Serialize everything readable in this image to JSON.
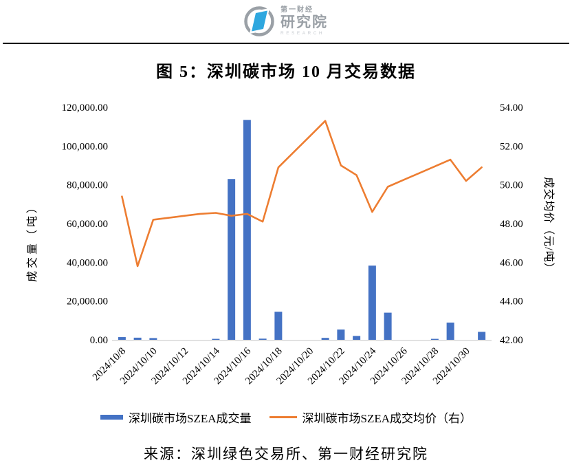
{
  "header": {
    "logo": {
      "brand_top": "第一财经",
      "brand_main": "研究院",
      "brand_sub": "RESEARCH",
      "colors": {
        "blue": "#2EA7DF",
        "gray": "#9AA0A6",
        "light_gray": "#C7CBD0"
      }
    }
  },
  "title": "图 5：深圳碳市场 10 月交易数据",
  "chart_data": {
    "type": "combo-bar-line",
    "title": "图 5：深圳碳市场 10 月交易数据",
    "grid": false,
    "legend_position": "bottom",
    "categories": [
      "2024/10/8",
      "2024/10/9",
      "2024/10/10",
      "2024/10/11",
      "2024/10/12",
      "2024/10/13",
      "2024/10/14",
      "2024/10/15",
      "2024/10/16",
      "2024/10/17",
      "2024/10/18",
      "2024/10/19",
      "2024/10/20",
      "2024/10/21",
      "2024/10/22",
      "2024/10/23",
      "2024/10/24",
      "2024/10/25",
      "2024/10/26",
      "2024/10/27",
      "2024/10/28",
      "2024/10/29",
      "2024/10/30",
      "2024/10/31"
    ],
    "series": [
      {
        "name": "深圳碳市场SZEA成交量",
        "type": "bar",
        "axis": "left",
        "color": "#4472C4",
        "values": [
          1400,
          1100,
          900,
          0,
          0,
          0,
          500,
          83000,
          113500,
          600,
          14500,
          0,
          0,
          1000,
          5300,
          2000,
          38300,
          14000,
          0,
          0,
          500,
          8900,
          0,
          4100
        ]
      },
      {
        "name": "深圳碳市场SZEA成交均价（右）",
        "type": "line",
        "axis": "right",
        "color": "#ED7D31",
        "values": [
          49.4,
          45.8,
          48.2,
          48.3,
          48.4,
          48.5,
          48.55,
          48.4,
          48.5,
          48.1,
          50.9,
          51.7,
          52.5,
          53.3,
          51.0,
          50.5,
          48.6,
          49.9,
          50.25,
          50.6,
          50.95,
          51.3,
          50.2,
          50.9
        ]
      }
    ],
    "left_axis": {
      "label": "成交量（吨）",
      "min": 0,
      "max": 120000,
      "tick_step": 20000,
      "tick_labels": [
        "0.00",
        "20,000.00",
        "40,000.00",
        "60,000.00",
        "80,000.00",
        "100,000.00",
        "120,000.00"
      ]
    },
    "right_axis": {
      "label": "成交均价（元/吨）",
      "min": 42,
      "max": 54,
      "tick_step": 2,
      "tick_labels": [
        "42.00",
        "44.00",
        "46.00",
        "48.00",
        "50.00",
        "52.00",
        "54.00"
      ]
    },
    "x_axis": {
      "tick_interval": 2,
      "tick_labels": [
        "2024/10/8",
        "2024/10/10",
        "2024/10/12",
        "2024/10/14",
        "2024/10/16",
        "2024/10/18",
        "2024/10/20",
        "2024/10/22",
        "2024/10/24",
        "2024/10/26",
        "2024/10/28",
        "2024/10/30"
      ]
    },
    "axis_line_color": "#D9D9D9"
  },
  "footer": {
    "source": "来源：深圳绿色交易所、第一财经研究院"
  }
}
